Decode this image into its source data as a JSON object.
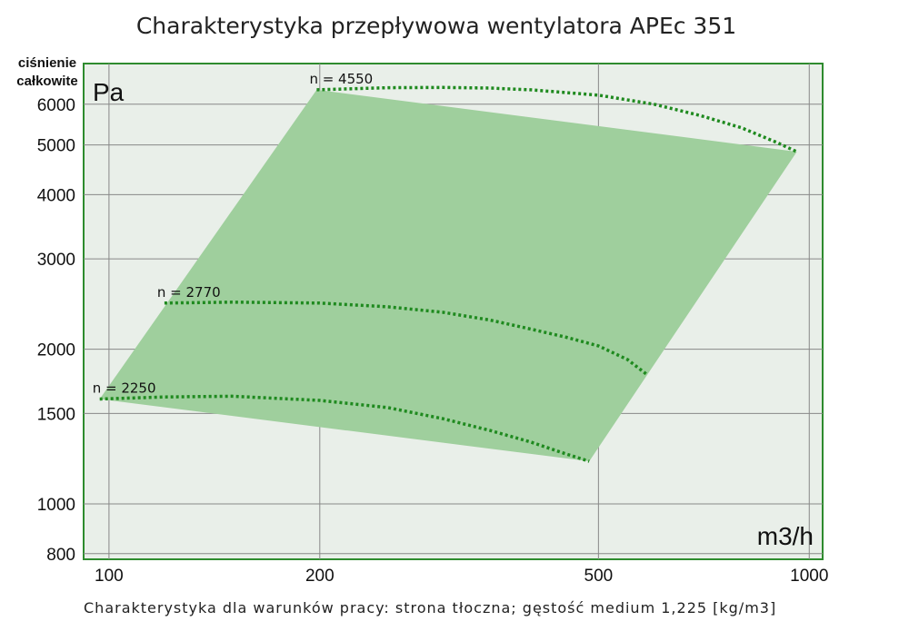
{
  "chart_data": {
    "type": "area",
    "title": "Charakterystyka przepływowa wentylatora APEc 351",
    "ylabel": "ciśnienie całkowite",
    "yunit": "Pa",
    "xunit": "m3/h",
    "xscale": "log",
    "yscale": "log",
    "xlim": [
      92,
      1045
    ],
    "ylim": [
      780,
      7200
    ],
    "xticks": [
      100,
      200,
      500,
      1000
    ],
    "xtick_labels": [
      "100",
      "200",
      "500",
      "1000"
    ],
    "yticks": [
      800,
      1000,
      1500,
      2000,
      3000,
      4000,
      5000,
      6000
    ],
    "ytick_labels": [
      "800",
      "1000",
      "1500",
      "2000",
      "3000",
      "4000",
      "5000",
      "6000"
    ],
    "grid": true,
    "operating_region": [
      [
        97,
        1600
      ],
      [
        198,
        6400
      ],
      [
        960,
        4850
      ],
      [
        485,
        1210
      ]
    ],
    "series": [
      {
        "name": "n = 2250",
        "x": [
          97,
          120,
          150,
          200,
          250,
          300,
          350,
          400,
          450,
          485
        ],
        "y": [
          1600,
          1615,
          1620,
          1590,
          1540,
          1465,
          1390,
          1320,
          1250,
          1210
        ]
      },
      {
        "name": "n = 2770",
        "x": [
          120,
          150,
          200,
          250,
          300,
          350,
          400,
          450,
          500,
          550,
          585
        ],
        "y": [
          2460,
          2470,
          2460,
          2420,
          2360,
          2280,
          2190,
          2110,
          2030,
          1910,
          1790
        ]
      },
      {
        "name": "n = 4550",
        "x": [
          198,
          250,
          300,
          350,
          400,
          500,
          600,
          700,
          800,
          900,
          960
        ],
        "y": [
          6400,
          6460,
          6470,
          6450,
          6400,
          6250,
          6000,
          5700,
          5400,
          5050,
          4850
        ]
      }
    ],
    "footnote": "Charakterystyka dla warunków pracy: strona tłoczna; gęstość medium 1,225 [kg/m3]"
  }
}
